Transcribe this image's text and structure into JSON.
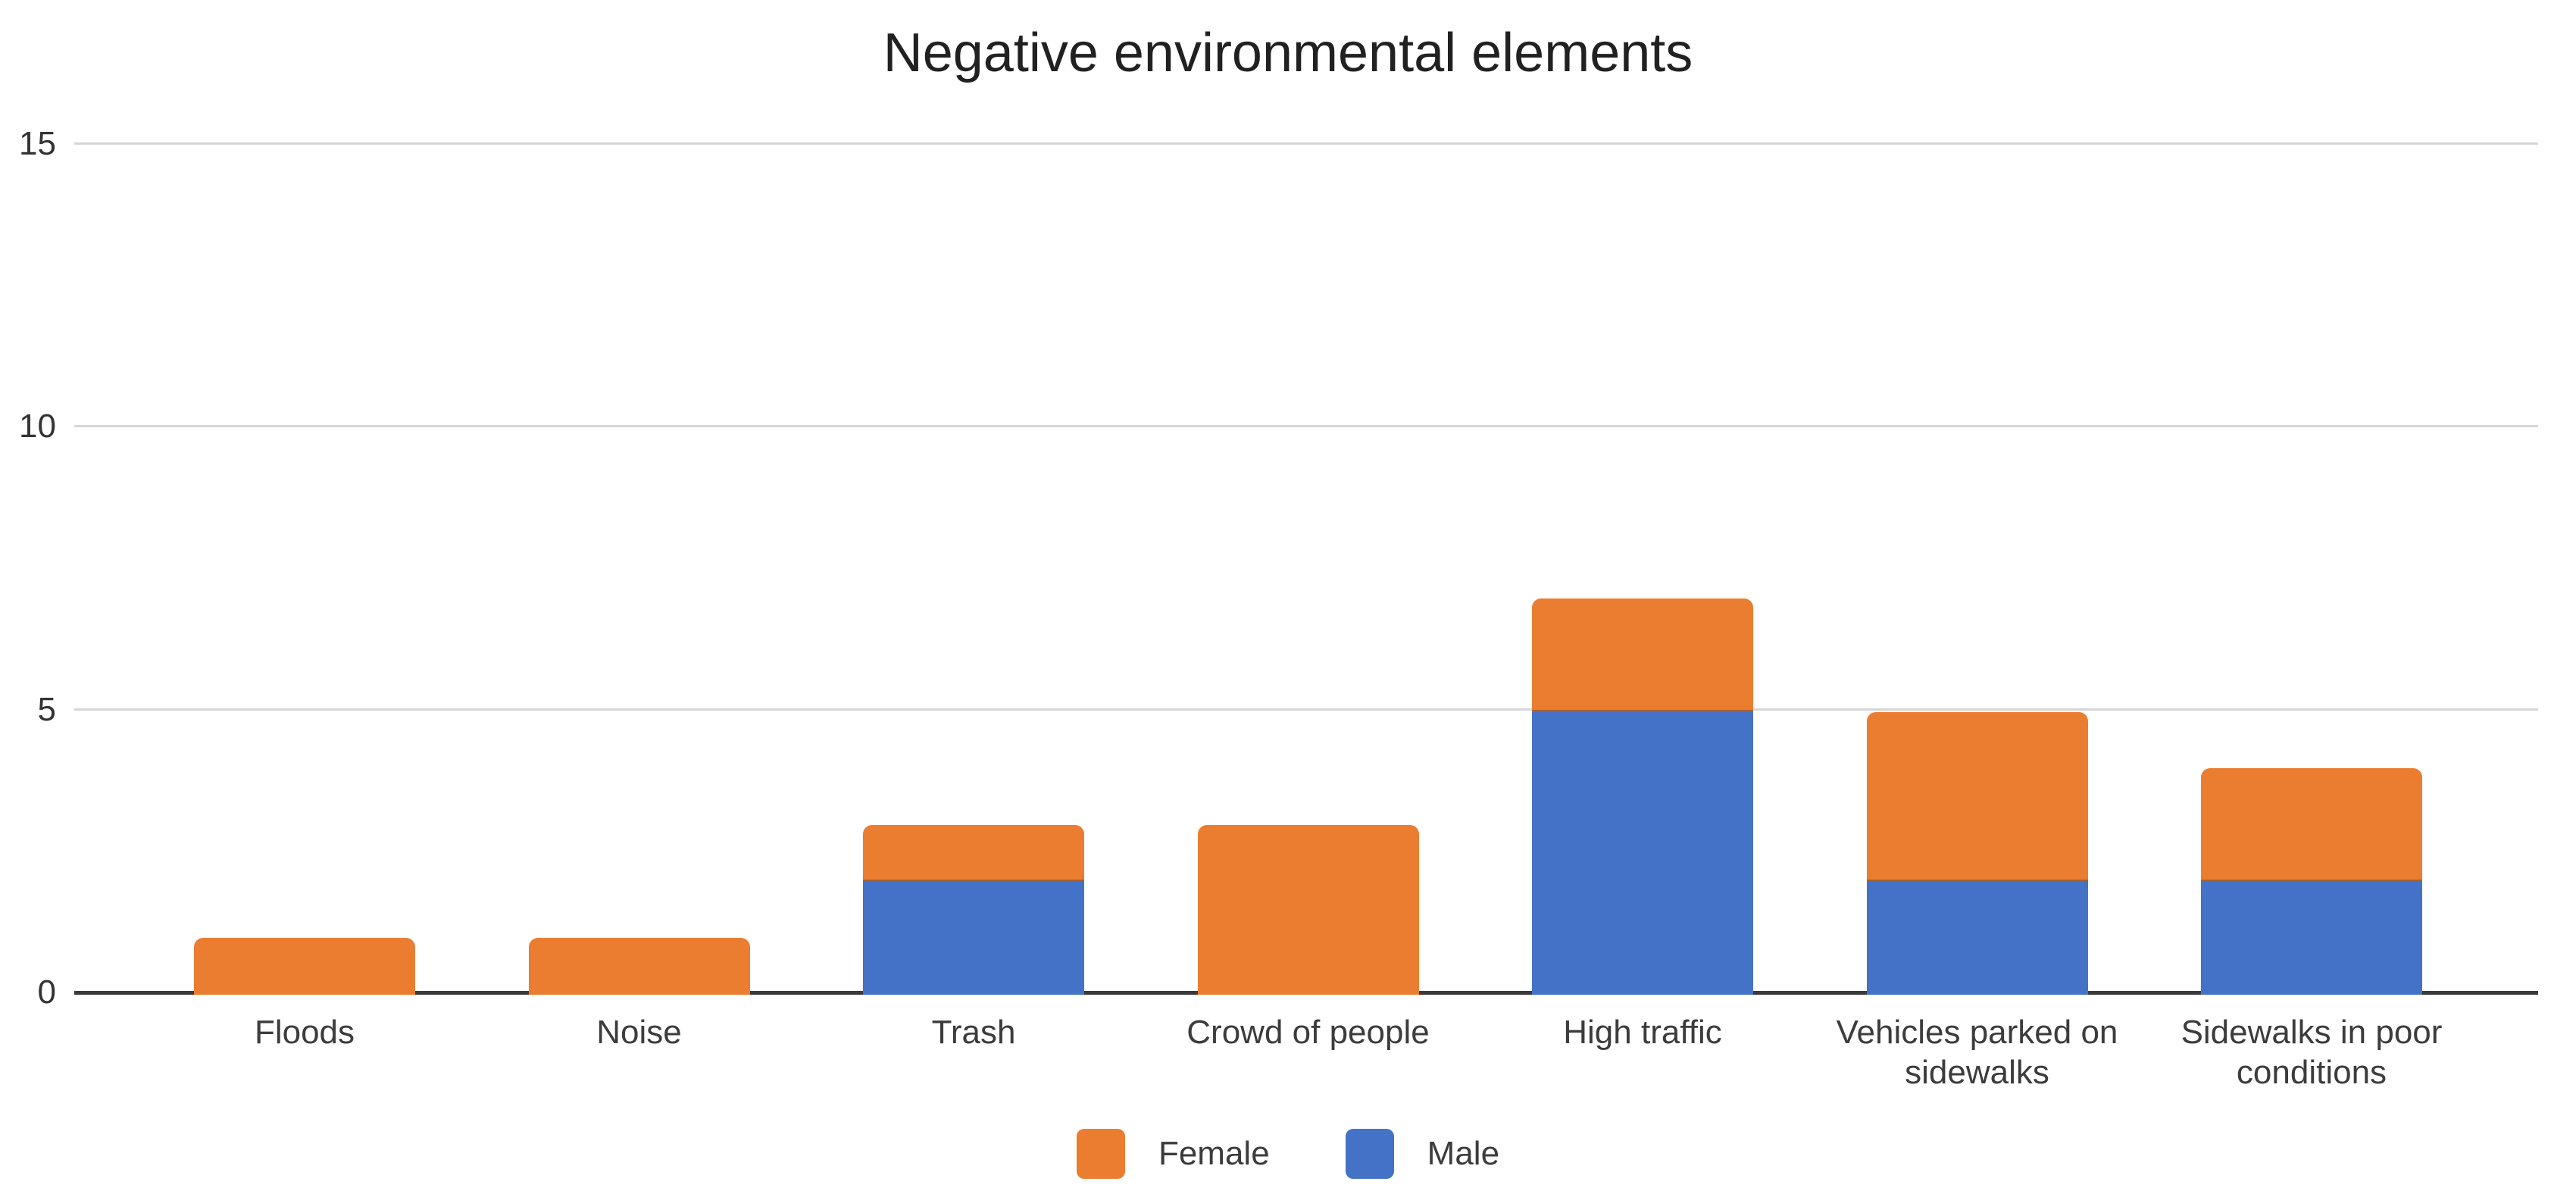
{
  "page": {
    "background": "#ffffff"
  },
  "chart_data": {
    "type": "bar",
    "stacked": true,
    "title": "Negative environmental elements",
    "categories": [
      "Floods",
      "Noise",
      "Trash",
      "Crowd of people",
      "High traffic",
      "Vehicles parked on sidewalks",
      "Sidewalks in poor conditions"
    ],
    "series": [
      {
        "name": "Male",
        "color": "#4472c6",
        "values": [
          0,
          0,
          2,
          0,
          5,
          2,
          2
        ]
      },
      {
        "name": "Female",
        "color": "#eb7d31",
        "values": [
          1,
          1,
          1,
          3,
          2,
          3,
          2
        ]
      }
    ],
    "totals": [
      1,
      1,
      3,
      3,
      7,
      5,
      4
    ],
    "y_axis": {
      "min": 0,
      "max": 15,
      "ticks": [
        0,
        5,
        10,
        15
      ]
    },
    "grid": true,
    "legend": {
      "position": "bottom",
      "items": [
        {
          "label": "Female",
          "color": "#eb7d31"
        },
        {
          "label": "Male",
          "color": "#4472c6"
        }
      ]
    },
    "colors": {
      "axis_line": "#3a3a3a",
      "gridline": "#d6d6d6",
      "tick_text": "#333333",
      "label_text": "#3c3c3c",
      "title_text": "#212121"
    }
  }
}
